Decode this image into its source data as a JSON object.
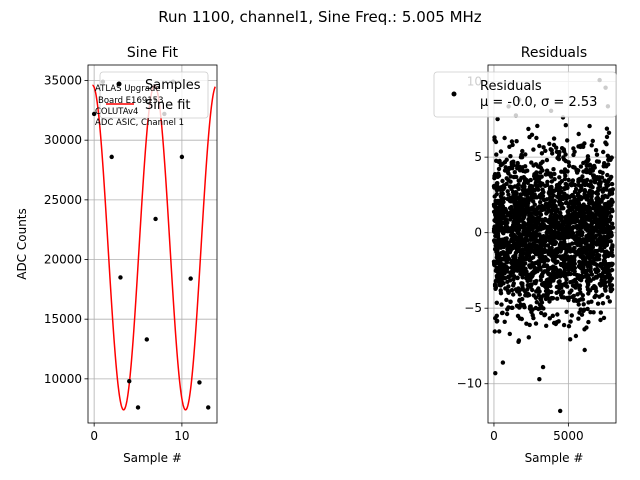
{
  "figure": {
    "suptitle": "Run 1100, channel1, Sine Freq.: 5.005 MHz"
  },
  "colors": {
    "fit_line": "#ff0000",
    "points": "#000000",
    "grid": "#b0b0b0"
  },
  "chart_data": [
    {
      "type": "scatter",
      "title": "Sine Fit",
      "xlabel": "Sample #",
      "ylabel": "ADC Counts",
      "xlim": [
        -0.7,
        14
      ],
      "ylim": [
        6300,
        36300
      ],
      "xticks": [
        0,
        10
      ],
      "xtick_labels": [
        "0",
        "10"
      ],
      "yticks": [
        10000,
        15000,
        20000,
        25000,
        30000,
        35000
      ],
      "ytick_labels": [
        "10000",
        "15000",
        "20000",
        "25000",
        "30000",
        "35000"
      ],
      "grid": true,
      "series": [
        {
          "name": "Samples",
          "kind": "points",
          "x": [
            0,
            1,
            2,
            3,
            4,
            5,
            6,
            7,
            8,
            9,
            10,
            11,
            12,
            13
          ],
          "y": [
            32200,
            34900,
            28600,
            18500,
            9800,
            7600,
            13300,
            23400,
            32200,
            34900,
            28600,
            18400,
            9700,
            7600
          ]
        },
        {
          "name": "Sine fit",
          "kind": "line",
          "function": "sine",
          "offset": 21000,
          "amplitude": 13600,
          "period_samples": 7.06,
          "phase_rad": 1.725,
          "x_range": [
            -0.2,
            13.8
          ]
        }
      ],
      "legend": {
        "placement": "top-right",
        "entries": [
          "Samples",
          "Sine fit"
        ]
      },
      "annotation_lines": [
        "ATLAS Upgrade",
        "Board E169153",
        "COLUTAv4",
        "ADC ASIC, Channel 1"
      ]
    },
    {
      "type": "scatter",
      "title": "Residuals",
      "xlabel": "Sample #",
      "ylabel": "",
      "xlim": [
        -400,
        8200
      ],
      "ylim": [
        -12.6,
        11.1
      ],
      "xticks": [
        0,
        5000
      ],
      "xtick_labels": [
        "0",
        "5000"
      ],
      "yticks": [
        -10,
        -5,
        0,
        5,
        10
      ],
      "ytick_labels": [
        "−10",
        "−5",
        "0",
        "5",
        "10"
      ],
      "grid": true,
      "series": [
        {
          "name": "Residuals",
          "kind": "points",
          "count": 8000,
          "mean": 0.0,
          "sd": 2.53,
          "x_range": [
            0,
            7999
          ],
          "outliers": [
            {
              "x": 4450,
              "y": -11.8
            },
            {
              "x": 7100,
              "y": 10.1
            },
            {
              "x": 90,
              "y": -9.3
            },
            {
              "x": 3050,
              "y": -9.7
            },
            {
              "x": 1700,
              "y": 8.8
            },
            {
              "x": 3300,
              "y": -8.9
            },
            {
              "x": 7500,
              "y": 9.6
            },
            {
              "x": 600,
              "y": -8.6
            }
          ]
        }
      ],
      "legend": {
        "placement": "top-right",
        "entries": [
          "Residuals",
          "$\\mu$ = -0.0, $\\sigma$ = 2.53"
        ],
        "entry_label": "Residuals",
        "stat_line": "μ = -0.0, σ = 2.53"
      }
    }
  ]
}
